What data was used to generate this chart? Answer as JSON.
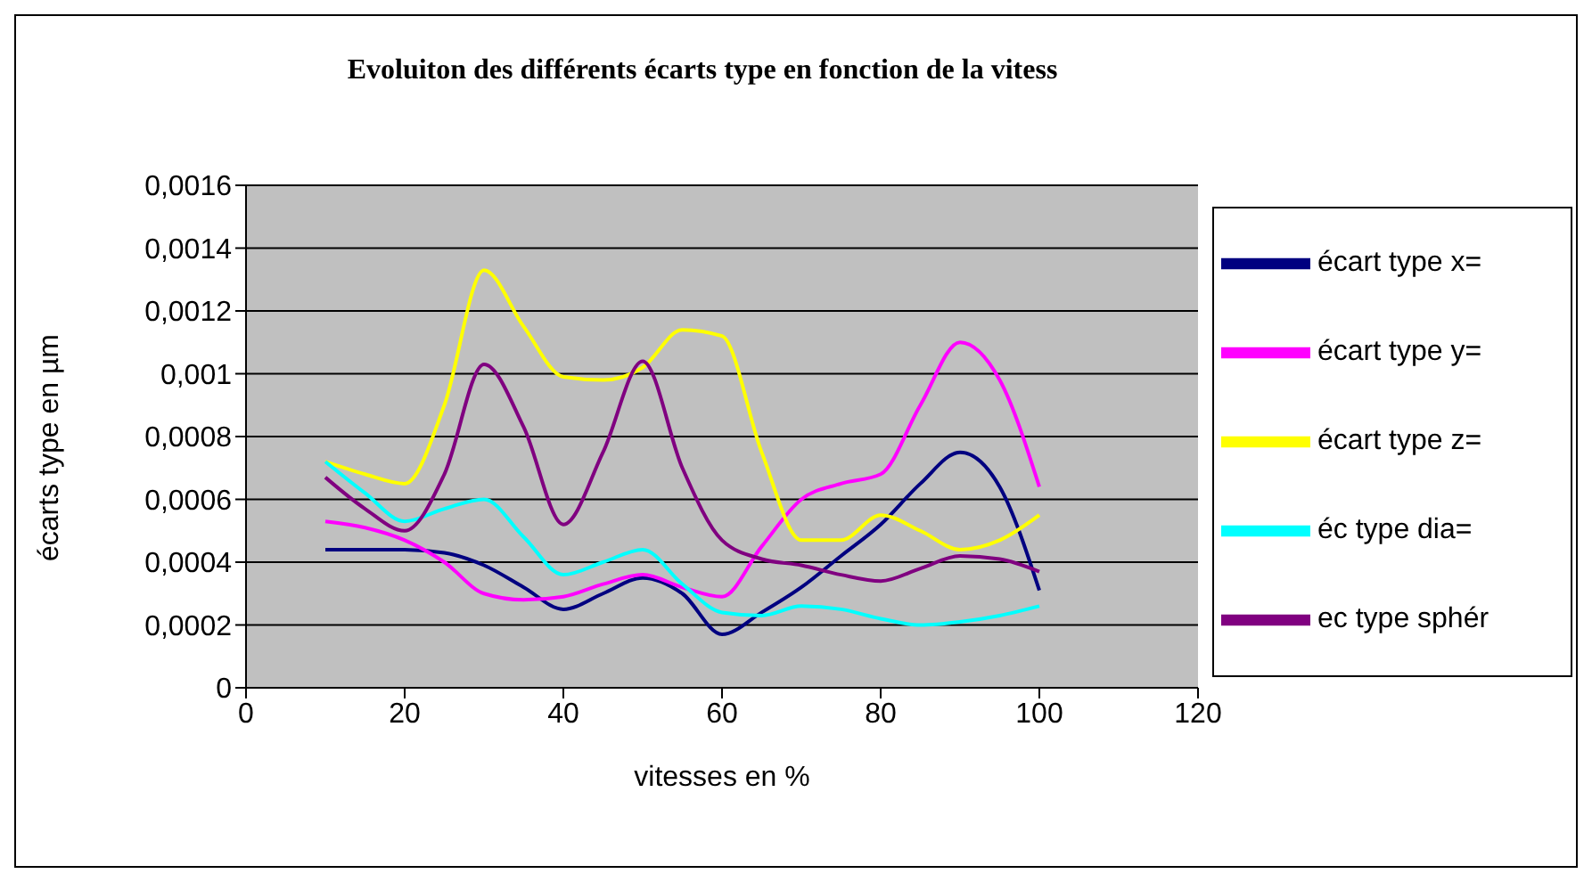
{
  "chart_data": {
    "type": "line",
    "title": "Evoluiton des différents écarts type en fonction de la vitess",
    "xlabel": "vitesses en %",
    "ylabel": "écarts type en µm",
    "x": [
      10,
      15,
      20,
      25,
      30,
      35,
      40,
      45,
      50,
      55,
      60,
      65,
      70,
      75,
      80,
      85,
      90,
      95,
      100
    ],
    "series": [
      {
        "name": "écart type x=",
        "color": "#000080",
        "values": [
          0.00044,
          0.00044,
          0.00044,
          0.00043,
          0.00039,
          0.00032,
          0.00025,
          0.0003,
          0.00035,
          0.0003,
          0.00017,
          0.00024,
          0.00032,
          0.00042,
          0.00052,
          0.00065,
          0.00075,
          0.00064,
          0.00031
        ]
      },
      {
        "name": "écart type y=",
        "color": "#ff00ff",
        "values": [
          0.00053,
          0.00051,
          0.00047,
          0.0004,
          0.0003,
          0.00028,
          0.00029,
          0.00033,
          0.00036,
          0.00032,
          0.00029,
          0.00045,
          0.0006,
          0.00065,
          0.00068,
          0.0009,
          0.0011,
          0.00098,
          0.00064
        ]
      },
      {
        "name": "écart type z=",
        "color": "#ffff00",
        "values": [
          0.00072,
          0.00068,
          0.00065,
          0.0009,
          0.00133,
          0.00115,
          0.00099,
          0.00098,
          0.00102,
          0.00114,
          0.00112,
          0.00075,
          0.00047,
          0.00047,
          0.00055,
          0.0005,
          0.00044,
          0.00047,
          0.00055
        ]
      },
      {
        "name": "éc type dia=",
        "color": "#00ffff",
        "values": [
          0.00072,
          0.00062,
          0.00053,
          0.00057,
          0.0006,
          0.00048,
          0.00036,
          0.0004,
          0.00044,
          0.00033,
          0.00024,
          0.00023,
          0.00026,
          0.00025,
          0.00022,
          0.0002,
          0.00021,
          0.00023,
          0.00026
        ]
      },
      {
        "name": "ec type sphér",
        "color": "#800080",
        "values": [
          0.00067,
          0.00057,
          0.0005,
          0.00068,
          0.00103,
          0.00083,
          0.00052,
          0.00075,
          0.00104,
          0.0007,
          0.00047,
          0.00041,
          0.00039,
          0.00036,
          0.00034,
          0.00038,
          0.00042,
          0.00041,
          0.00037
        ]
      }
    ],
    "xlim": [
      0,
      120
    ],
    "xticks": [
      0,
      20,
      40,
      60,
      80,
      100,
      120
    ],
    "ylim": [
      0,
      0.0016
    ],
    "yticks": [
      0,
      {
        "value": 0.0002,
        "label": "0,0002"
      },
      {
        "value": 0.0004,
        "label": "0,0004"
      },
      {
        "value": 0.0006,
        "label": "0,0006"
      },
      {
        "value": 0.0008,
        "label": "0,0008"
      },
      {
        "value": 0.001,
        "label": "0,001"
      },
      {
        "value": 0.0012,
        "label": "0,0012"
      },
      {
        "value": 0.0014,
        "label": "0,0014"
      },
      {
        "value": 0.0016,
        "label": "0,0016"
      }
    ],
    "grid": "y",
    "legend": "right",
    "marker": "none",
    "line_style": "solid"
  }
}
